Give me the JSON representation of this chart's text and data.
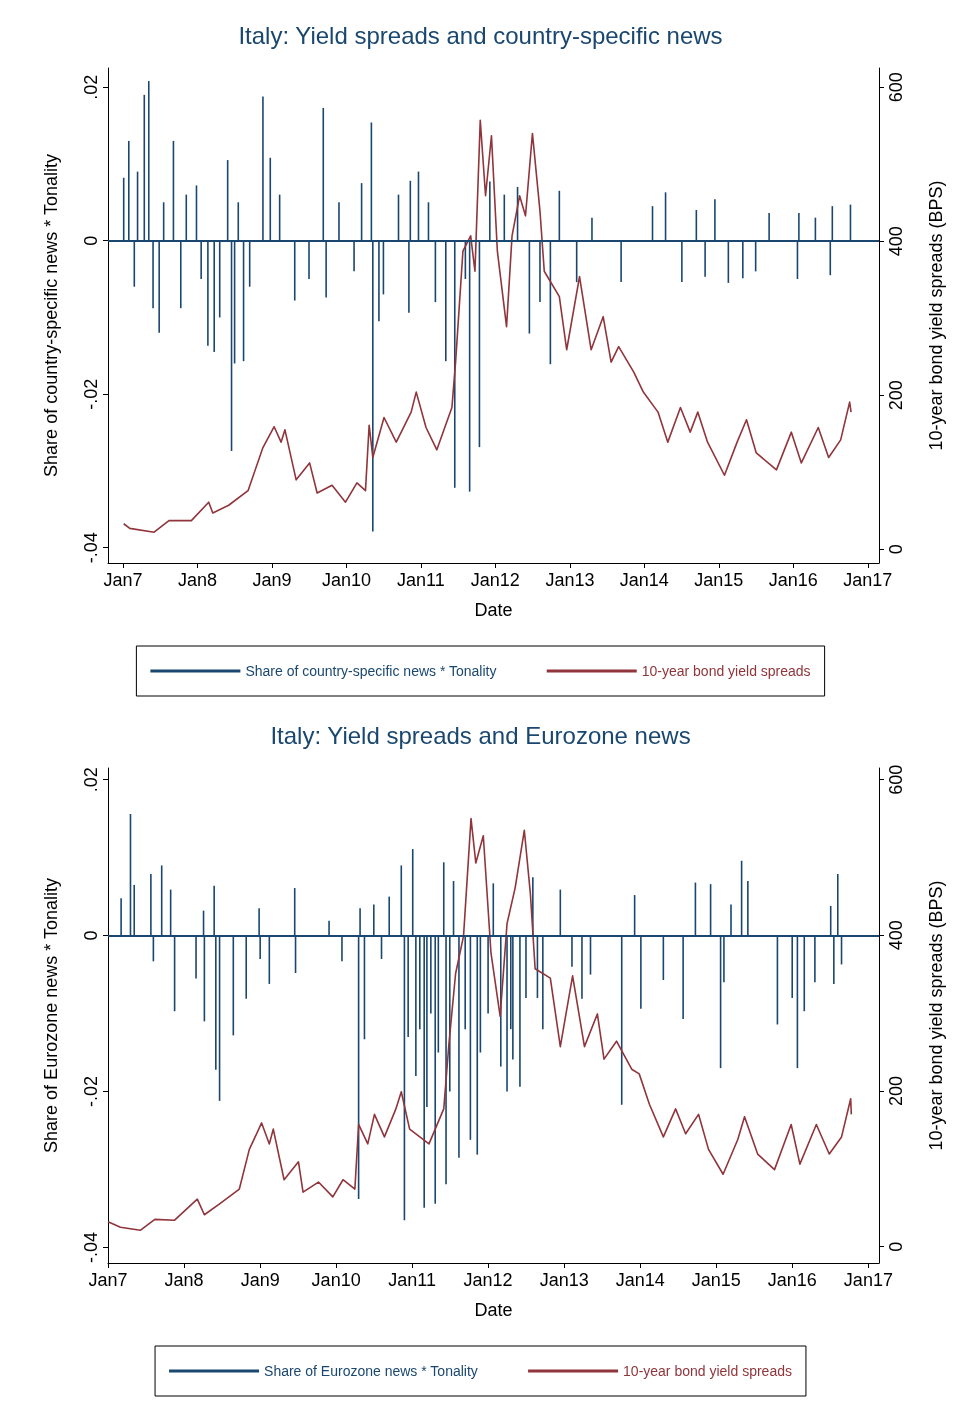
{
  "chart_data": [
    {
      "type": "line",
      "title": "Italy: Yield spreads and country-specific news",
      "xlabel": "Date",
      "ylabel": "Share of country-specific news * Tonality",
      "y2label": "10-year bond yield spreads (BPS)",
      "legend": "bottom",
      "grid": false,
      "xlim": [
        "2006-10-19",
        "2017-02-25"
      ],
      "xticks": [
        {
          "value": "2007-01-01",
          "label": "Jan7"
        },
        {
          "value": "2008-01-01",
          "label": "Jan8"
        },
        {
          "value": "2009-01-01",
          "label": "Jan9"
        },
        {
          "value": "2010-01-01",
          "label": "Jan10"
        },
        {
          "value": "2011-01-01",
          "label": "Jan11"
        },
        {
          "value": "2012-01-01",
          "label": "Jan12"
        },
        {
          "value": "2013-01-01",
          "label": "Jan13"
        },
        {
          "value": "2014-01-01",
          "label": "Jan14"
        },
        {
          "value": "2015-01-01",
          "label": "Jan15"
        },
        {
          "value": "2016-01-01",
          "label": "Jan16"
        },
        {
          "value": "2017-01-01",
          "label": "Jan17"
        }
      ],
      "ylim": [
        -0.042,
        0.0225
      ],
      "yticks": [
        {
          "value": -0.04,
          "label": "-.04"
        },
        {
          "value": -0.02,
          "label": "-.02"
        },
        0,
        {
          "value": 0.02,
          "label": ".02"
        }
      ],
      "y2lim": [
        -18,
        625
      ],
      "y2ticks": [
        0,
        200,
        400,
        600
      ],
      "ref_lines": [
        {
          "axis": "y",
          "value": 0,
          "color": "#1a476f"
        }
      ],
      "series": [
        {
          "name": "Share of country-specific news * Tonality",
          "type": "bar",
          "axis": "y",
          "color": "#1a476f",
          "x": [
            "2007-01-04",
            "2007-01-29",
            "2007-02-25",
            "2007-03-13",
            "2007-04-15",
            "2007-05-07",
            "2007-05-28",
            "2007-06-27",
            "2007-07-19",
            "2007-09-05",
            "2007-10-11",
            "2007-11-07",
            "2007-12-27",
            "2008-01-19",
            "2008-02-21",
            "2008-03-23",
            "2008-04-19",
            "2008-05-28",
            "2008-06-16",
            "2008-07-01",
            "2008-07-19",
            "2008-08-14",
            "2008-09-13",
            "2008-11-17",
            "2008-12-23",
            "2009-02-07",
            "2009-04-22",
            "2009-07-01",
            "2009-09-09",
            "2009-09-23",
            "2009-11-25",
            "2010-02-07",
            "2010-03-16",
            "2010-05-03",
            "2010-05-10",
            "2010-06-09",
            "2010-07-01",
            "2010-09-13",
            "2010-11-03",
            "2010-11-10",
            "2010-12-20",
            "2011-02-07",
            "2011-03-13",
            "2011-05-03",
            "2011-06-16",
            "2011-08-07",
            "2011-08-28",
            "2011-10-15",
            "2011-12-05",
            "2012-02-14",
            "2012-04-19",
            "2012-06-16",
            "2012-08-07",
            "2012-09-27",
            "2012-11-10",
            "2013-02-03",
            "2013-04-19",
            "2013-09-09",
            "2014-02-10",
            "2014-04-15",
            "2014-07-04",
            "2014-09-13",
            "2014-10-26",
            "2014-12-13",
            "2015-02-17",
            "2015-04-29",
            "2015-07-01",
            "2015-09-05",
            "2016-01-22",
            "2016-01-29",
            "2016-04-19",
            "2016-07-01",
            "2016-07-11",
            "2016-10-08"
          ],
          "values": [
            0.0082,
            0.013,
            -0.006,
            0.009,
            0.019,
            0.0208,
            -0.0088,
            -0.012,
            0.005,
            0.013,
            -0.0088,
            0.006,
            0.0072,
            -0.005,
            -0.0137,
            -0.0145,
            -0.01,
            0.0105,
            -0.0274,
            -0.016,
            0.005,
            -0.0157,
            -0.006,
            0.0188,
            0.0108,
            0.006,
            -0.0078,
            -0.005,
            0.0173,
            -0.0074,
            0.005,
            -0.004,
            0.0075,
            0.0154,
            -0.0379,
            -0.0105,
            -0.007,
            0.006,
            -0.0094,
            0.0078,
            0.009,
            0.005,
            -0.008,
            -0.0157,
            -0.0322,
            -0.005,
            -0.0327,
            -0.0269,
            0.0077,
            0.006,
            0.007,
            -0.0121,
            -0.008,
            -0.0161,
            0.0065,
            -0.0054,
            0.003,
            -0.0054,
            0.0045,
            0.0063,
            -0.0054,
            0.004,
            -0.0047,
            0.0054,
            -0.0055,
            -0.0049,
            -0.004,
            0.0036,
            -0.005,
            0.0036,
            0.003,
            -0.0045,
            0.0045,
            0.0047
          ]
        },
        {
          "name": "10-year bond yield spreads",
          "axis": "y2",
          "color": "#90353b",
          "x": [
            "2007-01-04",
            "2007-02-03",
            "2007-06-02",
            "2007-08-14",
            "2007-12-02",
            "2008-02-25",
            "2008-03-16",
            "2008-06-02",
            "2008-09-05",
            "2008-11-17",
            "2009-01-11",
            "2009-02-14",
            "2009-03-05",
            "2009-04-29",
            "2009-07-04",
            "2009-08-10",
            "2009-10-22",
            "2009-12-27",
            "2010-02-21",
            "2010-04-04",
            "2010-04-22",
            "2010-05-10",
            "2010-07-04",
            "2010-09-02",
            "2010-11-14",
            "2010-12-09",
            "2011-01-26",
            "2011-03-20",
            "2011-06-02",
            "2011-06-20",
            "2011-07-26",
            "2011-09-02",
            "2011-09-23",
            "2011-10-19",
            "2011-11-14",
            "2011-12-13",
            "2012-01-11",
            "2012-02-25",
            "2012-03-23",
            "2012-04-29",
            "2012-05-28",
            "2012-07-01",
            "2012-08-07",
            "2012-08-28",
            "2012-11-10",
            "2012-12-16",
            "2013-02-17",
            "2013-04-15",
            "2013-06-13",
            "2013-07-22",
            "2013-08-28",
            "2013-11-10",
            "2013-12-27",
            "2014-03-09",
            "2014-04-26",
            "2014-06-27",
            "2014-08-14",
            "2014-09-20",
            "2014-11-07",
            "2015-01-29",
            "2015-04-01",
            "2015-05-17",
            "2015-07-04",
            "2015-10-11",
            "2015-12-23",
            "2016-02-10",
            "2016-05-03",
            "2016-06-23",
            "2016-08-21",
            "2016-10-04",
            "2016-10-11"
          ],
          "values": [
            33,
            27,
            22,
            37,
            37,
            61,
            47,
            57,
            76,
            132,
            159,
            139,
            155,
            90,
            112,
            73,
            83,
            61,
            86,
            76,
            161,
            119,
            171,
            139,
            178,
            204,
            158,
            129,
            184,
            243,
            387,
            407,
            361,
            557,
            459,
            537,
            387,
            289,
            407,
            459,
            433,
            540,
            439,
            361,
            328,
            259,
            354,
            259,
            302,
            243,
            263,
            230,
            204,
            178,
            139,
            184,
            152,
            178,
            139,
            96,
            139,
            168,
            125,
            103,
            152,
            112,
            158,
            119,
            142,
            191,
            178
          ]
        }
      ]
    },
    {
      "type": "line",
      "title": "Italy: Yield spreads and Eurozone news",
      "xlabel": "Date",
      "ylabel": "Share of Eurozone news * Tonality",
      "y2label": "10-year bond yield spreads (BPS)",
      "legend": "bottom",
      "grid": false,
      "xlim": [
        "2007-01-01",
        "2017-02-21"
      ],
      "xticks": [
        {
          "value": "2007-01-01",
          "label": "Jan7"
        },
        {
          "value": "2008-01-01",
          "label": "Jan8"
        },
        {
          "value": "2009-01-01",
          "label": "Jan9"
        },
        {
          "value": "2010-01-01",
          "label": "Jan10"
        },
        {
          "value": "2011-01-01",
          "label": "Jan11"
        },
        {
          "value": "2012-01-01",
          "label": "Jan12"
        },
        {
          "value": "2013-01-01",
          "label": "Jan13"
        },
        {
          "value": "2014-01-01",
          "label": "Jan14"
        },
        {
          "value": "2015-01-01",
          "label": "Jan15"
        },
        {
          "value": "2016-01-01",
          "label": "Jan16"
        },
        {
          "value": "2017-01-01",
          "label": "Jan17"
        }
      ],
      "ylim": [
        -0.042,
        0.0215
      ],
      "yticks": [
        {
          "value": -0.04,
          "label": "-.04"
        },
        {
          "value": -0.02,
          "label": "-.02"
        },
        0,
        {
          "value": 0.02,
          "label": ".02"
        }
      ],
      "y2lim": [
        -21,
        615
      ],
      "y2ticks": [
        0,
        200,
        400,
        600
      ],
      "ref_lines": [
        {
          "axis": "y",
          "value": 0,
          "color": "#1a476f"
        }
      ],
      "series": [
        {
          "name": "Share of Eurozone news * Tonality",
          "type": "bar",
          "axis": "y",
          "color": "#1a476f",
          "x": [
            "2007-03-05",
            "2007-04-19",
            "2007-05-07",
            "2007-07-26",
            "2007-08-07",
            "2007-09-16",
            "2007-10-29",
            "2007-11-17",
            "2008-02-28",
            "2008-04-04",
            "2008-04-08",
            "2008-05-25",
            "2008-06-02",
            "2008-06-20",
            "2008-08-25",
            "2008-10-26",
            "2008-12-27",
            "2009-01-01",
            "2009-02-14",
            "2009-06-16",
            "2009-06-20",
            "2009-11-28",
            "2010-01-29",
            "2010-04-19",
            "2010-04-26",
            "2010-05-17",
            "2010-07-01",
            "2010-08-07",
            "2010-09-13",
            "2010-11-10",
            "2010-11-25",
            "2010-12-13",
            "2011-01-04",
            "2011-01-19",
            "2011-02-07",
            "2011-02-28",
            "2011-03-13",
            "2011-04-01",
            "2011-04-22",
            "2011-05-07",
            "2011-06-02",
            "2011-06-13",
            "2011-07-01",
            "2011-07-19",
            "2011-08-14",
            "2011-09-13",
            "2011-10-08",
            "2011-11-10",
            "2011-11-25",
            "2012-01-01",
            "2012-01-26",
            "2012-03-02",
            "2012-04-01",
            "2012-04-19",
            "2012-04-29",
            "2012-06-02",
            "2012-07-01",
            "2012-08-03",
            "2012-08-25",
            "2012-09-20",
            "2012-12-13",
            "2013-02-07",
            "2013-03-27",
            "2013-05-07",
            "2013-10-04",
            "2013-12-05",
            "2014-01-04",
            "2014-04-22",
            "2014-07-26",
            "2014-09-23",
            "2014-12-05",
            "2015-01-22",
            "2015-02-07",
            "2015-03-13",
            "2015-05-03",
            "2015-06-02",
            "2015-10-22",
            "2016-01-01",
            "2016-01-26",
            "2016-02-28",
            "2016-04-19",
            "2016-07-04",
            "2016-07-19",
            "2016-08-07",
            "2016-08-25"
          ],
          "values": [
            0.0048,
            0.0156,
            0.0065,
            0.0079,
            -0.0033,
            0.009,
            0.0059,
            -0.0097,
            -0.0055,
            0.0032,
            -0.011,
            0.0064,
            -0.0172,
            -0.0212,
            -0.0128,
            -0.0081,
            0.0035,
            -0.003,
            -0.0062,
            0.0061,
            -0.0048,
            0.0019,
            -0.0033,
            -0.0338,
            0.0035,
            -0.0133,
            0.004,
            -0.003,
            0.005,
            0.009,
            -0.0365,
            -0.013,
            0.0111,
            -0.018,
            -0.012,
            -0.0349,
            -0.022,
            -0.01,
            -0.0344,
            -0.015,
            0.0094,
            -0.0319,
            -0.02,
            0.007,
            -0.0285,
            -0.012,
            -0.0262,
            -0.0281,
            -0.015,
            -0.01,
            0.0067,
            -0.0168,
            -0.02,
            -0.012,
            -0.0159,
            -0.0194,
            -0.008,
            0.0075,
            -0.008,
            -0.012,
            0.0059,
            -0.004,
            -0.0081,
            -0.005,
            -0.0217,
            0.0052,
            -0.0094,
            -0.0057,
            -0.0107,
            0.0068,
            0.0066,
            -0.017,
            -0.006,
            0.004,
            0.0096,
            0.007,
            -0.0114,
            -0.008,
            -0.017,
            -0.0097,
            -0.006,
            0.0038,
            -0.0062,
            0.0079,
            -0.0037
          ]
        },
        {
          "name": "10-year bond yield spreads",
          "axis": "y2",
          "color": "#90353b",
          "x": [
            "2007-01-01",
            "2007-03-02",
            "2007-06-05",
            "2007-08-14",
            "2007-11-17",
            "2008-03-05",
            "2008-04-08",
            "2008-06-20",
            "2008-09-23",
            "2008-11-10",
            "2009-01-08",
            "2009-02-14",
            "2009-03-05",
            "2009-04-26",
            "2009-07-04",
            "2009-07-26",
            "2009-10-08",
            "2009-12-16",
            "2010-02-03",
            "2010-04-01",
            "2010-04-19",
            "2010-06-02",
            "2010-07-04",
            "2010-08-21",
            "2010-10-15",
            "2010-11-10",
            "2010-12-20",
            "2011-03-23",
            "2011-06-02",
            "2011-06-27",
            "2011-07-29",
            "2011-09-05",
            "2011-10-11",
            "2011-11-03",
            "2011-12-09",
            "2012-01-15",
            "2012-02-28",
            "2012-04-01",
            "2012-05-10",
            "2012-06-23",
            "2012-07-22",
            "2012-08-14",
            "2012-10-26",
            "2012-12-13",
            "2013-02-10",
            "2013-04-08",
            "2013-06-09",
            "2013-07-11",
            "2013-09-09",
            "2013-11-21",
            "2013-12-27",
            "2014-02-14",
            "2014-04-22",
            "2014-06-20",
            "2014-08-07",
            "2014-10-08",
            "2014-11-25",
            "2015-02-03",
            "2015-04-15",
            "2015-05-17",
            "2015-07-19",
            "2015-10-08",
            "2015-12-27",
            "2016-02-07",
            "2016-04-26",
            "2016-06-27",
            "2016-08-25",
            "2016-10-08",
            "2016-10-11"
          ],
          "values": [
            32,
            25,
            21,
            35,
            34,
            61,
            41,
            55,
            74,
            125,
            159,
            132,
            151,
            86,
            109,
            70,
            83,
            64,
            86,
            74,
            157,
            132,
            170,
            141,
            177,
            199,
            151,
            132,
            177,
            261,
            351,
            399,
            550,
            493,
            528,
            377,
            296,
            415,
            461,
            535,
            454,
            357,
            345,
            257,
            348,
            257,
            299,
            241,
            264,
            228,
            222,
            183,
            141,
            177,
            145,
            170,
            125,
            93,
            138,
            167,
            119,
            99,
            157,
            106,
            157,
            119,
            141,
            190,
            170
          ]
        }
      ]
    }
  ]
}
